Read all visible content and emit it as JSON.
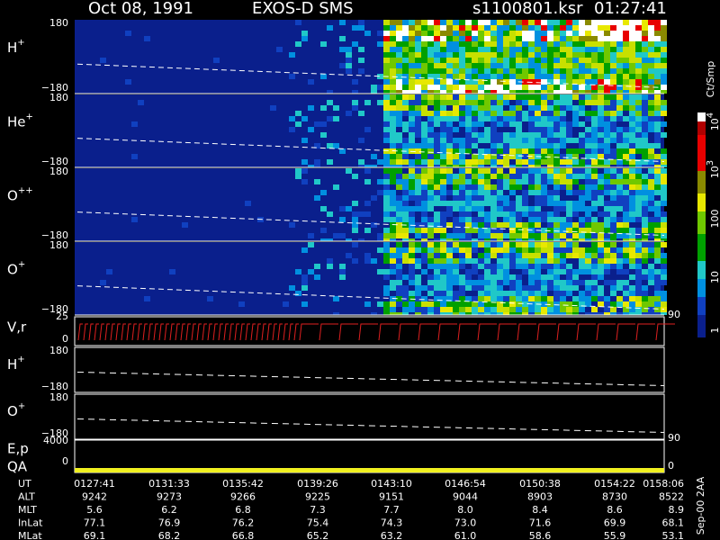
{
  "header": {
    "date": "Oct 08, 1991",
    "instrument": "EXOS-D SMS",
    "file": "s1100801.ksr",
    "time": "01:27:41"
  },
  "spectra": [
    {
      "label": {
        "base": "H",
        "sup": "+"
      },
      "top": "180",
      "bottom": "−180"
    },
    {
      "label": {
        "base": "He",
        "sup": "+"
      },
      "top": "180",
      "bottom": "−180"
    },
    {
      "label": {
        "base": "O",
        "sup": "++"
      },
      "top": "180",
      "bottom": "−180"
    },
    {
      "label": {
        "base": "O",
        "sup": "+"
      },
      "top": "180",
      "bottom": "−180"
    }
  ],
  "vr": {
    "label": "V,r",
    "top": "25",
    "bottom": "0",
    "right": "90"
  },
  "pitch": [
    {
      "label": {
        "base": "H",
        "sup": "+"
      },
      "top": "180",
      "bottom": "−180"
    },
    {
      "label": {
        "base": "O",
        "sup": "+"
      },
      "top": "180",
      "bottom": "−180"
    }
  ],
  "ep": {
    "label": "E,p",
    "top": "4000",
    "right": "90"
  },
  "qa": {
    "label": "QA",
    "value": "0"
  },
  "colorbar": {
    "title": "Ct/Smp",
    "ticks": [
      {
        "base": "10",
        "sup": "4"
      },
      {
        "base": "10",
        "sup": "3"
      },
      {
        "base": "100"
      },
      {
        "base": "10"
      },
      {
        "base": "1"
      }
    ]
  },
  "stamp": "Sep-00 2AA",
  "footer": {
    "rows": [
      {
        "label": "UT",
        "values": [
          "0127:41",
          "0131:33",
          "0135:42",
          "0139:26",
          "0143:10",
          "0146:54",
          "0150:38",
          "0154:22",
          "0158:06"
        ]
      },
      {
        "label": "ALT",
        "values": [
          "9242",
          "9273",
          "9266",
          "9225",
          "9151",
          "9044",
          "8903",
          "8730",
          "8522"
        ]
      },
      {
        "label": "MLT",
        "values": [
          "5.6",
          "6.2",
          "6.8",
          "7.3",
          "7.7",
          "8.0",
          "8.4",
          "8.6",
          "8.9"
        ]
      },
      {
        "label": "InLat",
        "values": [
          "77.1",
          "76.9",
          "76.2",
          "75.4",
          "74.3",
          "73.0",
          "71.6",
          "69.9",
          "68.1"
        ]
      },
      {
        "label": "MLat",
        "values": [
          "69.1",
          "68.2",
          "66.8",
          "65.2",
          "63.2",
          "61.0",
          "58.6",
          "55.9",
          "53.1"
        ]
      }
    ]
  }
}
